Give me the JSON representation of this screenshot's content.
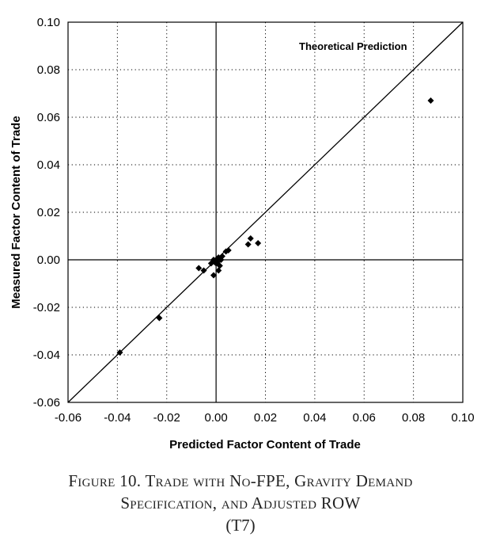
{
  "chart_data": {
    "type": "scatter",
    "xlabel": "Predicted Factor Content of Trade",
    "ylabel": "Measured Factor Content of Trade",
    "xlim": [
      -0.06,
      0.1
    ],
    "ylim": [
      -0.06,
      0.1
    ],
    "xticks": [
      "-0.06",
      "-0.04",
      "-0.02",
      "0.00",
      "0.02",
      "0.04",
      "0.06",
      "0.08",
      "0.10"
    ],
    "yticks": [
      "-0.06",
      "-0.04",
      "-0.02",
      "0.00",
      "0.02",
      "0.04",
      "0.06",
      "0.08",
      "0.10"
    ],
    "xtick_values": [
      -0.06,
      -0.04,
      -0.02,
      0.0,
      0.02,
      0.04,
      0.06,
      0.08,
      0.1
    ],
    "ytick_values": [
      -0.06,
      -0.04,
      -0.02,
      0.0,
      0.02,
      0.04,
      0.06,
      0.08,
      0.1
    ],
    "grid": true,
    "reference_line": {
      "label": "Theoretical Prediction",
      "from": [
        -0.06,
        -0.06
      ],
      "to": [
        0.1,
        0.1
      ]
    },
    "points": [
      {
        "x": 0.087,
        "y": 0.067
      },
      {
        "x": -0.039,
        "y": -0.039
      },
      {
        "x": -0.023,
        "y": -0.0245
      },
      {
        "x": 0.014,
        "y": 0.009
      },
      {
        "x": 0.017,
        "y": 0.007
      },
      {
        "x": 0.013,
        "y": 0.0065
      },
      {
        "x": 0.005,
        "y": 0.004
      },
      {
        "x": 0.004,
        "y": 0.0035
      },
      {
        "x": -0.007,
        "y": -0.0035
      },
      {
        "x": -0.005,
        "y": -0.0045
      },
      {
        "x": -0.001,
        "y": -0.0065
      },
      {
        "x": 0.001,
        "y": -0.0045
      },
      {
        "x": 0.0015,
        "y": -0.0025
      },
      {
        "x": 0.0005,
        "y": -0.001
      },
      {
        "x": -0.0005,
        "y": -0.001
      },
      {
        "x": -0.001,
        "y": 0.0
      },
      {
        "x": 0.0,
        "y": -0.0015
      },
      {
        "x": 0.002,
        "y": 0.0
      },
      {
        "x": 0.001,
        "y": 0.001
      },
      {
        "x": 0.0025,
        "y": 0.0015
      },
      {
        "x": -0.002,
        "y": -0.0015
      },
      {
        "x": 0.0005,
        "y": 0.0005
      }
    ]
  },
  "caption": {
    "line1": "Figure 10.  Trade with No-FPE, Gravity Demand",
    "line2": "Specification, and Adjusted ROW",
    "line3": "(T7)"
  }
}
